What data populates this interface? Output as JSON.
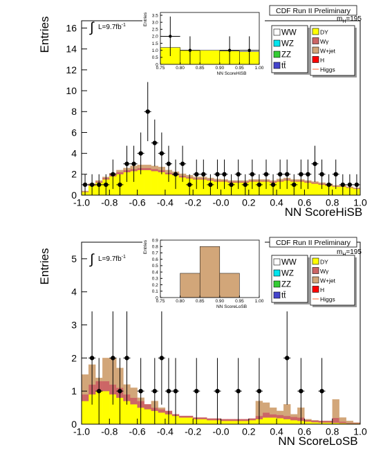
{
  "chart_data": [
    {
      "type": "stacked_histogram",
      "header": "CDF Run II Preliminary",
      "mass_label": {
        "text": "m",
        "subscript": "H",
        "suffix": "=195"
      },
      "lumi_label": {
        "text": "L=9.7fb",
        "superscript": "-1"
      },
      "xlabel": "NN ScoreHiSB",
      "ylabel": "Entries",
      "xlim": [
        -1,
        1
      ],
      "ylim": [
        0,
        16.7
      ],
      "xticks": [
        {
          "value": -1,
          "label": "-1.0"
        },
        -0.8,
        -0.6,
        -0.4,
        -0.2,
        {
          "value": 0,
          "label": "-0.0"
        },
        0.2,
        0.4,
        0.6,
        0.8,
        {
          "value": 1,
          "label": "1.0"
        }
      ],
      "yticks": [
        0,
        2,
        4,
        6,
        8,
        10,
        12,
        14,
        16
      ],
      "bins": [
        -1,
        -0.95,
        -0.9,
        -0.85,
        -0.8,
        -0.75,
        -0.7,
        -0.65,
        -0.6,
        -0.55,
        -0.5,
        -0.45,
        -0.4,
        -0.35,
        -0.3,
        -0.25,
        -0.2,
        -0.15,
        -0.1,
        -0.05,
        0,
        0.05,
        0.1,
        0.15,
        0.2,
        0.25,
        0.3,
        0.35,
        0.4,
        0.45,
        0.5,
        0.55,
        0.6,
        0.65,
        0.7,
        0.75,
        0.8,
        0.85,
        0.9,
        0.95,
        1
      ],
      "series": [
        {
          "name": "DY",
          "color": "#ffff00",
          "values": [
            0.3,
            0.9,
            1.2,
            1.5,
            1.8,
            2.0,
            2.2,
            2.3,
            2.4,
            2.4,
            2.3,
            2.2,
            2.0,
            1.9,
            1.7,
            1.6,
            1.5,
            1.5,
            1.4,
            1.3,
            1.3,
            1.2,
            1.2,
            1.2,
            1.3,
            1.3,
            1.3,
            1.2,
            1.3,
            1.4,
            1.3,
            1.3,
            1.2,
            1.1,
            1.0,
            0.9,
            0.8,
            0.8,
            0.7,
            0.6
          ]
        },
        {
          "name": "Wγ",
          "color": "#cc6666",
          "values": [
            0.05,
            0.1,
            0.1,
            0.15,
            0.15,
            0.2,
            0.2,
            0.2,
            0.2,
            0.2,
            0.2,
            0.2,
            0.15,
            0.15,
            0.15,
            0.1,
            0.1,
            0.1,
            0.1,
            0.1,
            0.1,
            0.1,
            0.1,
            0.1,
            0.1,
            0.1,
            0.1,
            0.1,
            0.1,
            0.1,
            0.1,
            0.1,
            0.1,
            0.1,
            0.1,
            0.1,
            0.05,
            0.05,
            0.05,
            0.05
          ]
        },
        {
          "name": "W+jet",
          "color": "#d2a679",
          "values": [
            0.05,
            0.1,
            0.1,
            0.1,
            0.15,
            0.2,
            0.2,
            0.3,
            0.3,
            0.3,
            0.3,
            0.3,
            0.25,
            0.2,
            0.2,
            0.2,
            0.15,
            0.15,
            0.15,
            0.15,
            0.1,
            0.1,
            0.1,
            0.1,
            0.1,
            0.1,
            0.1,
            0.1,
            0.15,
            0.15,
            0.1,
            0.1,
            0.1,
            0.1,
            0.1,
            0.1,
            0.1,
            0.1,
            0.05,
            0.05
          ]
        }
      ],
      "legend_extra": [
        {
          "name": "WW",
          "color": "#ffffff"
        },
        {
          "name": "WZ",
          "color": "#00e5ee"
        },
        {
          "name": "ZZ",
          "color": "#33cc33"
        },
        {
          "name": "tt̄",
          "color": "#4444cc"
        },
        {
          "name": "H",
          "color": "#ff0000"
        },
        {
          "name": "Higgs",
          "color": "#ff6633",
          "marker": "line"
        }
      ],
      "data": [
        1,
        1,
        1,
        1,
        2,
        1,
        3,
        3,
        4,
        8,
        5,
        4,
        3,
        2,
        3,
        1,
        2,
        2,
        1,
        2,
        2,
        1,
        2,
        1,
        2,
        1,
        2,
        1,
        2,
        2,
        1,
        2,
        2,
        3,
        2,
        1,
        2,
        1,
        1,
        1
      ],
      "data_err": [
        1,
        1,
        1,
        1,
        1.41,
        1,
        1.73,
        1.73,
        2,
        2.83,
        2.24,
        2,
        1.73,
        1.41,
        1.73,
        1,
        1.41,
        1.41,
        1,
        1.41,
        1.41,
        1,
        1.41,
        1,
        1.41,
        1,
        1.41,
        1,
        1.41,
        1.41,
        1,
        1.41,
        1.41,
        1.73,
        1.41,
        1,
        1.41,
        1,
        1,
        1
      ],
      "inset": {
        "xlabel": "NN ScoreHiSB",
        "ylabel": "Entries",
        "color": "#ffff00",
        "xlim": [
          0.75,
          1
        ],
        "ylim": [
          0,
          3.7
        ],
        "xticks": [
          0.75,
          {
            "value": 0.8,
            "label": "0.80"
          },
          0.85,
          {
            "value": 0.9,
            "label": "0.90"
          },
          0.95,
          {
            "value": 1,
            "label": "1.00"
          }
        ],
        "yticks": [
          0,
          0.5,
          {
            "value": 1,
            "label": "1.0"
          },
          1.5,
          {
            "value": 2,
            "label": "2.0"
          },
          2.5,
          {
            "value": 3,
            "label": "3.0"
          },
          3.5
        ],
        "bins": [
          0.75,
          0.8,
          0.85,
          0.9,
          0.95,
          1
        ],
        "values": [
          1.2,
          1.0,
          1.0,
          0.95,
          0.9
        ],
        "data": [
          2,
          1,
          null,
          1,
          1
        ],
        "data_err": [
          1.41,
          1,
          null,
          1,
          1
        ]
      }
    },
    {
      "type": "stacked_histogram",
      "header": "CDF Run II Preliminary",
      "mass_label": {
        "text": "m",
        "subscript": "H",
        "suffix": "=195"
      },
      "lumi_label": {
        "text": "L=9.7fb",
        "superscript": "-1"
      },
      "xlabel": "NN ScoreLoSB",
      "ylabel": "Entries",
      "xlim": [
        -1,
        1
      ],
      "ylim": [
        0,
        5.5
      ],
      "xticks": [
        {
          "value": -1,
          "label": "-1.0"
        },
        -0.8,
        -0.6,
        -0.4,
        -0.2,
        {
          "value": 0,
          "label": "-0.0"
        },
        0.2,
        0.4,
        0.6,
        0.8,
        {
          "value": 1,
          "label": "1.0"
        }
      ],
      "yticks": [
        0,
        1,
        2,
        3,
        4,
        5
      ],
      "bins": [
        -1,
        -0.95,
        -0.9,
        -0.85,
        -0.8,
        -0.75,
        -0.7,
        -0.65,
        -0.6,
        -0.55,
        -0.5,
        -0.45,
        -0.4,
        -0.35,
        -0.3,
        -0.25,
        -0.2,
        -0.15,
        -0.1,
        -0.05,
        0,
        0.05,
        0.1,
        0.15,
        0.2,
        0.25,
        0.3,
        0.35,
        0.4,
        0.45,
        0.5,
        0.55,
        0.6,
        0.65,
        0.7,
        0.75,
        0.8,
        0.85,
        0.9,
        0.95,
        1
      ],
      "series": [
        {
          "name": "DY",
          "color": "#ffff00",
          "values": [
            0.7,
            0.9,
            1.0,
            1.0,
            0.9,
            0.8,
            0.7,
            0.6,
            0.5,
            0.45,
            0.4,
            0.35,
            0.3,
            0.25,
            0.2,
            0.2,
            0.15,
            0.15,
            0.12,
            0.12,
            0.1,
            0.1,
            0.1,
            0.1,
            0.12,
            0.15,
            0.2,
            0.2,
            0.18,
            0.15,
            0.12,
            0.1,
            0.08,
            0.06,
            0.05,
            0.05,
            0.04,
            0.03,
            0.02,
            0.02
          ]
        },
        {
          "name": "Wγ",
          "color": "#cc6666",
          "values": [
            0.2,
            0.3,
            0.3,
            0.3,
            0.3,
            0.3,
            0.2,
            0.2,
            0.2,
            0.15,
            0.1,
            0.1,
            0.1,
            0.05,
            0.05,
            0.05,
            0.05,
            0.05,
            0.05,
            0.05,
            0.05,
            0.05,
            0.05,
            0.05,
            0.05,
            0.1,
            0.15,
            0.1,
            0.1,
            0.1,
            0.1,
            0.1,
            0.05,
            0.05,
            0.05,
            0.05,
            0.15,
            0.05,
            0.02,
            0.02
          ]
        },
        {
          "name": "W+jet",
          "color": "#d2a679",
          "values": [
            0.6,
            0.6,
            0.1,
            0.7,
            0.8,
            0.6,
            0.3,
            0.3,
            0.1,
            0,
            0.2,
            0.05,
            0,
            0,
            0,
            0,
            0,
            0,
            0,
            0,
            0,
            0,
            0,
            0,
            0,
            0.45,
            0.3,
            0.2,
            0.12,
            0.35,
            0.08,
            0.3,
            0.02,
            0.01,
            0,
            0,
            0.56,
            0.12,
            0.06,
            0.01
          ]
        }
      ],
      "legend_extra": [
        {
          "name": "WW",
          "color": "#ffffff"
        },
        {
          "name": "WZ",
          "color": "#00e5ee"
        },
        {
          "name": "ZZ",
          "color": "#33cc33"
        },
        {
          "name": "tt̄",
          "color": "#4444cc"
        },
        {
          "name": "H",
          "color": "#ff0000"
        },
        {
          "name": "Higgs",
          "color": "#ff6633",
          "marker": "line"
        }
      ],
      "data": [
        null,
        2,
        1,
        null,
        2,
        1,
        2,
        null,
        1,
        null,
        1,
        2,
        1,
        1,
        null,
        null,
        1,
        null,
        null,
        1,
        null,
        null,
        1,
        null,
        null,
        1,
        null,
        null,
        null,
        2,
        null,
        1,
        null,
        null,
        1,
        null,
        null,
        null,
        null,
        null
      ],
      "data_err": [
        null,
        1.41,
        1,
        null,
        1.41,
        1,
        1.41,
        null,
        1,
        null,
        1,
        1.41,
        1,
        1,
        null,
        null,
        1,
        null,
        null,
        1,
        null,
        null,
        1,
        null,
        null,
        1,
        null,
        null,
        null,
        1.41,
        null,
        1,
        null,
        null,
        1,
        null,
        null,
        null,
        null,
        null
      ],
      "inset": {
        "xlabel": "NN ScoreLoSB",
        "ylabel": "Entries",
        "color": "#d2a679",
        "xlim": [
          0.75,
          1
        ],
        "ylim": [
          0,
          0.9
        ],
        "xticks": [
          0.75,
          {
            "value": 0.8,
            "label": "0.80"
          },
          0.85,
          {
            "value": 0.9,
            "label": "0.90"
          },
          0.95,
          {
            "value": 1,
            "label": "1.00"
          }
        ],
        "yticks": [
          0,
          0.1,
          0.2,
          0.3,
          0.4,
          0.5,
          0.6,
          0.7,
          0.8,
          0.9
        ],
        "bins": [
          0.75,
          0.8,
          0.85,
          0.9,
          0.95,
          1
        ],
        "values": [
          0,
          0.38,
          0.8,
          0.38,
          0
        ]
      }
    }
  ]
}
